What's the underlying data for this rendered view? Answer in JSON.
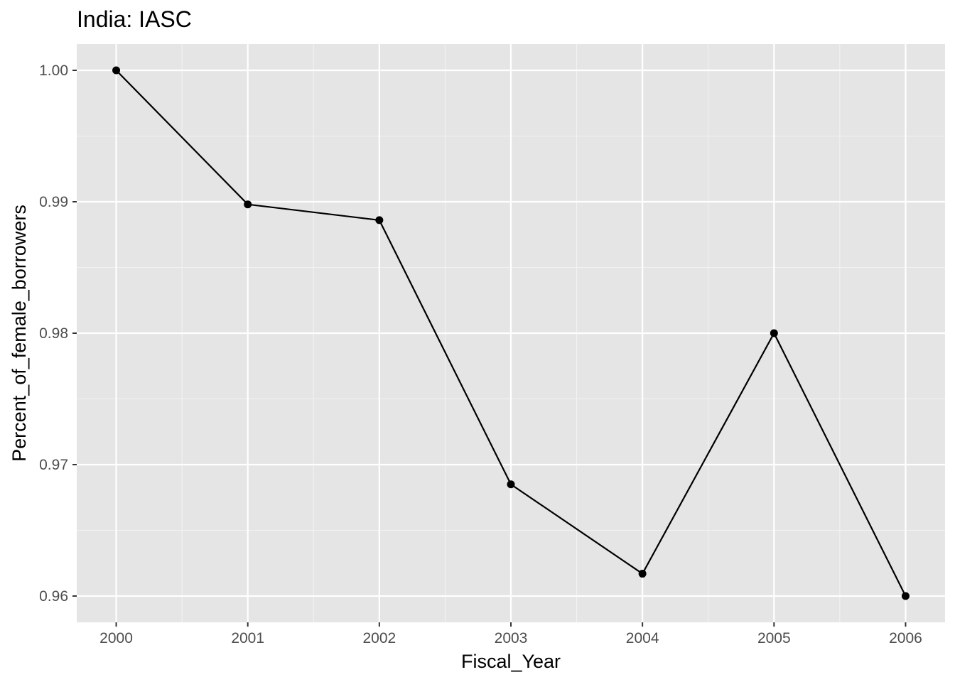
{
  "chart_data": {
    "type": "line",
    "title": "India:  IASC",
    "xlabel": "Fiscal_Year",
    "ylabel": "Percent_of_female_borrowers",
    "x": [
      2000,
      2001,
      2002,
      2003,
      2004,
      2005,
      2006
    ],
    "x_tick_labels": [
      "2000",
      "2001",
      "2002",
      "2003",
      "2004",
      "2005",
      "2006"
    ],
    "y_tick_values": [
      0.96,
      0.97,
      0.98,
      0.99,
      1.0
    ],
    "y_tick_labels": [
      "0.96",
      "0.97",
      "0.98",
      "0.99",
      "1.00"
    ],
    "xlim": [
      1999.7,
      2006.3
    ],
    "ylim": [
      0.958,
      1.002
    ],
    "grid": true,
    "legend": "none",
    "series": [
      {
        "values": [
          1.0,
          0.9898,
          0.9886,
          0.9685,
          0.9617,
          0.98,
          0.96
        ],
        "color": "#000000",
        "markers": true
      }
    ],
    "colors": {
      "panel_background": "#e5e5e5",
      "grid_major": "#ffffff",
      "grid_minor": "#f2f2f2",
      "tick_text": "#4d4d4d"
    }
  }
}
